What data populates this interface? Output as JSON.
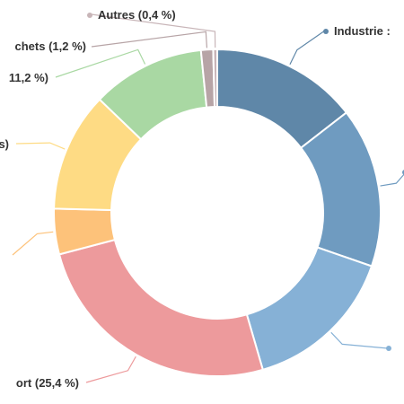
{
  "chart_data": {
    "type": "pie",
    "donut": true,
    "slices": [
      {
        "label": "Industrie : ",
        "value": 14.5,
        "color": "#5f87a8"
      },
      {
        "label": "",
        "value": 15.8,
        "color": "#6f9bc0"
      },
      {
        "label": "",
        "value": 15.2,
        "color": "#86b1d6"
      },
      {
        "label": "ort (25,4 %)",
        "value": 25.4,
        "color": "#ed9a9c"
      },
      {
        "label": "",
        "value": 4.5,
        "color": "#fdc27a"
      },
      {
        "label": "s)",
        "value": 11.8,
        "color": "#fedb84"
      },
      {
        "label": "11,2 %)",
        "value": 11.2,
        "color": "#a9d8a3"
      },
      {
        "label": "chets (1,2 %)",
        "value": 1.2,
        "color": "#b7a4a6"
      },
      {
        "label": "Autres (0,4 %)",
        "value": 0.4,
        "color": "#c8b5b8"
      }
    ]
  }
}
